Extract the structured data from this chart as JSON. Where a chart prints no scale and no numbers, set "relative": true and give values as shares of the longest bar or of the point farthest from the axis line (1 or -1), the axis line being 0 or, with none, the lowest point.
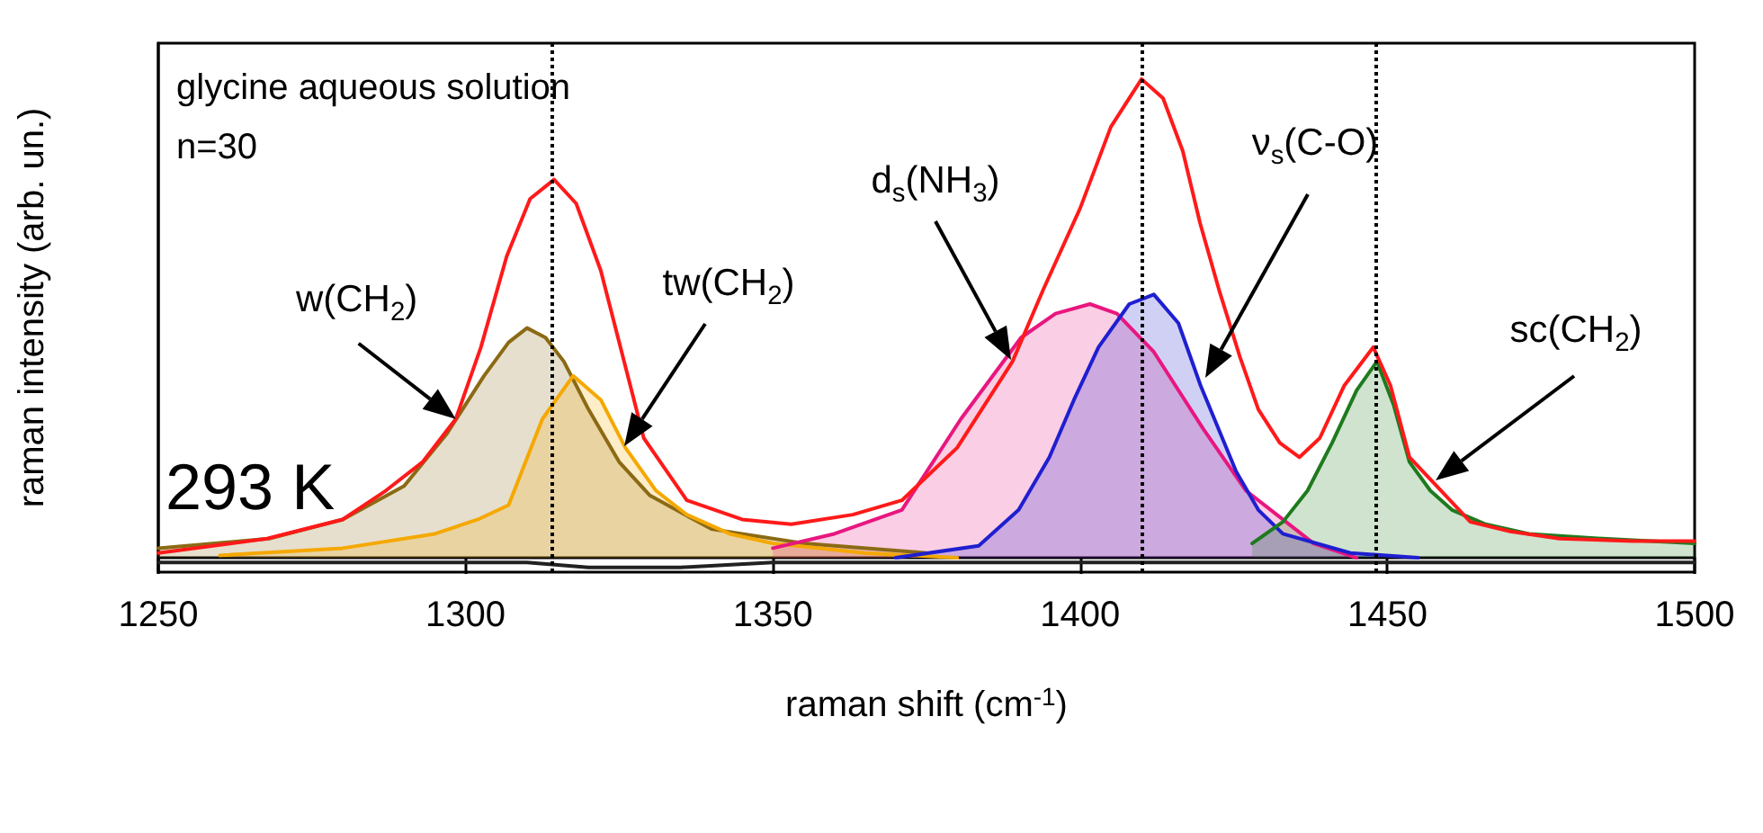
{
  "chart_data": {
    "type": "line",
    "relative": true,
    "xlabel": "raman shift (cm$^{-1}$)",
    "ylabel": "raman intensity (arb. un.)",
    "xlim": [
      1250,
      1500
    ],
    "xticks": [
      1250,
      1300,
      1350,
      1400,
      1450,
      1500
    ],
    "grid": false,
    "marker": "none",
    "series": [
      {
        "type": "area",
        "color": "#8b6a14",
        "x": [
          1250,
          1268,
          1280,
          1290,
          1297,
          1303,
          1307,
          1310,
          1313,
          1316,
          1320,
          1325,
          1330,
          1340,
          1355,
          1375
        ],
        "values": [
          0.02,
          0.04,
          0.08,
          0.15,
          0.26,
          0.38,
          0.45,
          0.48,
          0.46,
          0.41,
          0.31,
          0.2,
          0.13,
          0.06,
          0.03,
          0.01
        ]
      },
      {
        "type": "area",
        "color": "#f5a800",
        "x": [
          1260,
          1280,
          1295,
          1302,
          1307,
          1312.5,
          1317.5,
          1322,
          1326,
          1331,
          1336,
          1343,
          1350,
          1365,
          1380
        ],
        "values": [
          0.005,
          0.02,
          0.05,
          0.08,
          0.11,
          0.29,
          0.38,
          0.33,
          0.23,
          0.14,
          0.09,
          0.05,
          0.03,
          0.01,
          0
        ]
      },
      {
        "type": "area",
        "color": "#e8177f",
        "x": [
          1350,
          1360,
          1371,
          1380.6,
          1390.4,
          1396,
          1401.6,
          1406,
          1412,
          1420,
          1427,
          1432,
          1438,
          1445
        ],
        "values": [
          0.02,
          0.05,
          0.1,
          0.29,
          0.46,
          0.51,
          0.53,
          0.51,
          0.43,
          0.27,
          0.14,
          0.09,
          0.03,
          0
        ]
      },
      {
        "type": "area",
        "color": "#1f1fd0",
        "x": [
          1370,
          1383.5,
          1390,
          1395,
          1399,
          1403,
          1408,
          1412,
          1416,
          1419.6,
          1425.4,
          1429,
          1433,
          1444,
          1455
        ],
        "values": [
          0,
          0.025,
          0.1,
          0.21,
          0.33,
          0.44,
          0.53,
          0.55,
          0.49,
          0.36,
          0.18,
          0.1,
          0.05,
          0.01,
          0
        ]
      },
      {
        "type": "area",
        "color": "#1e7a1e",
        "x": [
          1428,
          1433,
          1437,
          1441,
          1445,
          1448.3,
          1451,
          1453.6,
          1457,
          1460.5,
          1466,
          1473,
          1485,
          1500
        ],
        "values": [
          0.03,
          0.075,
          0.14,
          0.24,
          0.35,
          0.41,
          0.32,
          0.2,
          0.14,
          0.1,
          0.07,
          0.05,
          0.04,
          0.03
        ]
      },
      {
        "type": "line",
        "color": "#222222",
        "x": [
          1250,
          1280,
          1310,
          1320,
          1335,
          1350,
          1400,
          1450,
          1500
        ],
        "values": [
          -0.01,
          -0.01,
          -0.01,
          -0.02,
          -0.02,
          -0.01,
          -0.01,
          -0.01,
          -0.01
        ]
      },
      {
        "type": "line",
        "color": "#ff1a1a",
        "x": [
          1250,
          1267.7,
          1280,
          1287,
          1293,
          1298.4,
          1302.5,
          1306.7,
          1310.5,
          1314.4,
          1318,
          1322,
          1326,
          1329,
          1336,
          1345,
          1353,
          1363,
          1371,
          1380,
          1389,
          1394,
          1400,
          1405,
          1410,
          1413.5,
          1416.7,
          1419.5,
          1422.6,
          1426,
          1429,
          1432.5,
          1435.7,
          1439,
          1443,
          1447.7,
          1450.5,
          1453.6,
          1458,
          1463.5,
          1470,
          1478,
          1490,
          1500
        ],
        "values": [
          0.01,
          0.04,
          0.08,
          0.14,
          0.2,
          0.29,
          0.44,
          0.63,
          0.75,
          0.79,
          0.74,
          0.6,
          0.4,
          0.25,
          0.12,
          0.08,
          0.07,
          0.09,
          0.12,
          0.23,
          0.41,
          0.56,
          0.73,
          0.9,
          1.0,
          0.96,
          0.85,
          0.7,
          0.56,
          0.42,
          0.31,
          0.24,
          0.21,
          0.25,
          0.36,
          0.44,
          0.36,
          0.21,
          0.15,
          0.075,
          0.055,
          0.04,
          0.035,
          0.035
        ]
      }
    ],
    "ref_lines": [
      {
        "axis": "x",
        "value": 1314,
        "line_style": "dotted",
        "color": "#000000"
      },
      {
        "axis": "x",
        "value": 1410,
        "line_style": "dotted",
        "color": "#000000"
      },
      {
        "axis": "x",
        "value": 1448,
        "line_style": "dotted",
        "color": "#000000"
      }
    ],
    "annotations": [
      "glycine aqueous solution",
      "n=30",
      "293 K",
      {
        "text": "w(CH$_{2}$)",
        "x": 1298.4,
        "y": 0.29
      },
      "tw(CH$_{2}$)",
      "d$_{s}$(NH$_{3}$)",
      "ν$_{s}$(C-O)",
      "sc(CH$_{2}$)"
    ]
  }
}
